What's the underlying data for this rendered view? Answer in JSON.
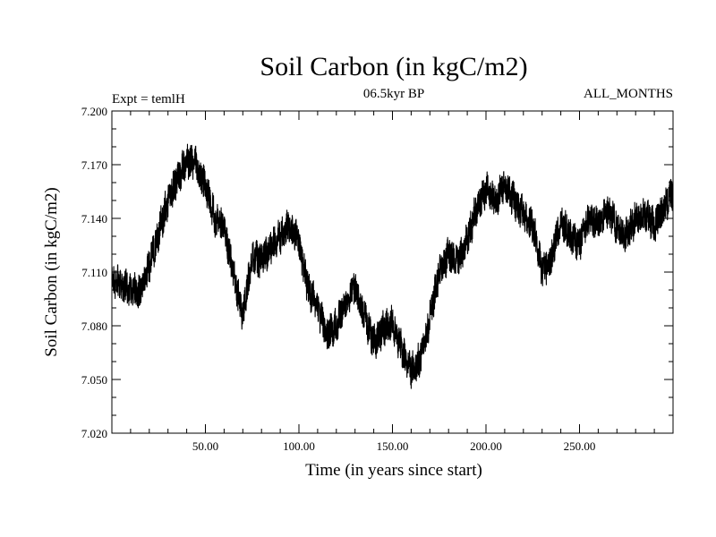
{
  "chart_data": {
    "type": "line",
    "title": "Soil Carbon (in kgC/m2)",
    "left_label": "Expt = temlH",
    "center_label": "06.5kyr BP",
    "right_label": "ALL_MONTHS",
    "xlabel": "Time (in years since start)",
    "ylabel": "Soil Carbon (in kgC/m2)",
    "xlim": [
      0,
      300
    ],
    "ylim": [
      7.02,
      7.2
    ],
    "xticks": [
      50,
      100,
      150,
      200,
      250
    ],
    "xtick_labels": [
      "50.00",
      "100.00",
      "150.00",
      "200.00",
      "250.00"
    ],
    "yticks": [
      7.02,
      7.05,
      7.08,
      7.11,
      7.14,
      7.17,
      7.2
    ],
    "ytick_labels": [
      "7.020",
      "7.050",
      "7.080",
      "7.110",
      "7.140",
      "7.170",
      "7.200"
    ],
    "series": [
      {
        "name": "Soil Carbon",
        "color": "#000000",
        "x": [
          0,
          5,
          10,
          15,
          20,
          25,
          30,
          35,
          40,
          45,
          50,
          55,
          60,
          65,
          70,
          75,
          80,
          85,
          90,
          95,
          100,
          105,
          110,
          115,
          120,
          125,
          130,
          135,
          140,
          145,
          150,
          155,
          160,
          165,
          170,
          175,
          180,
          185,
          190,
          195,
          200,
          205,
          210,
          215,
          220,
          225,
          230,
          235,
          240,
          245,
          250,
          255,
          260,
          265,
          270,
          275,
          280,
          285,
          290,
          295,
          300
        ],
        "values": [
          7.105,
          7.103,
          7.1,
          7.098,
          7.114,
          7.132,
          7.15,
          7.162,
          7.172,
          7.17,
          7.158,
          7.14,
          7.135,
          7.108,
          7.086,
          7.118,
          7.116,
          7.124,
          7.13,
          7.136,
          7.126,
          7.1,
          7.09,
          7.075,
          7.08,
          7.094,
          7.103,
          7.085,
          7.07,
          7.078,
          7.081,
          7.067,
          7.055,
          7.062,
          7.084,
          7.11,
          7.12,
          7.115,
          7.128,
          7.146,
          7.156,
          7.15,
          7.16,
          7.15,
          7.142,
          7.136,
          7.11,
          7.118,
          7.14,
          7.13,
          7.126,
          7.14,
          7.138,
          7.145,
          7.136,
          7.13,
          7.14,
          7.142,
          7.136,
          7.145,
          7.155
        ],
        "noise_amplitude": 0.009
      }
    ]
  }
}
